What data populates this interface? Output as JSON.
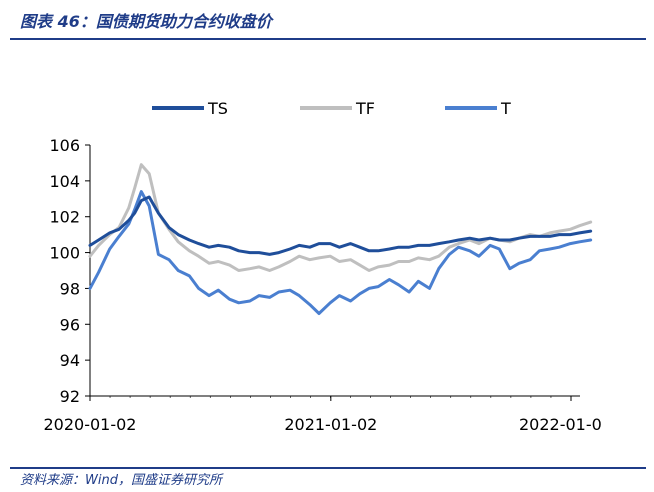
{
  "header": {
    "title": "图表 46：国债期货助力合约收盘价"
  },
  "footer": {
    "source": "资料来源：Wind，国盛证券研究所"
  },
  "chart_data": {
    "type": "line",
    "title": "",
    "xlabel": "",
    "ylabel": "",
    "ylim": [
      92,
      106
    ],
    "yticks": [
      92,
      94,
      96,
      98,
      100,
      102,
      104,
      106
    ],
    "xtick_labels": [
      "2020-01-02",
      "2021-01-02",
      "2022-01-0"
    ],
    "xlim_dates": [
      "2020-01-02",
      "2022-02-01"
    ],
    "grid": false,
    "legend_position": "top",
    "x": [
      "2020-01-02",
      "2020-01-15",
      "2020-02-01",
      "2020-02-15",
      "2020-03-01",
      "2020-03-10",
      "2020-03-20",
      "2020-04-01",
      "2020-04-15",
      "2020-05-01",
      "2020-05-15",
      "2020-06-01",
      "2020-06-15",
      "2020-07-01",
      "2020-07-15",
      "2020-08-01",
      "2020-08-15",
      "2020-09-01",
      "2020-09-15",
      "2020-10-01",
      "2020-10-15",
      "2020-11-01",
      "2020-11-15",
      "2020-12-01",
      "2020-12-15",
      "2021-01-01",
      "2021-01-15",
      "2021-02-01",
      "2021-02-15",
      "2021-03-01",
      "2021-03-15",
      "2021-04-01",
      "2021-04-15",
      "2021-05-01",
      "2021-05-15",
      "2021-06-01",
      "2021-06-15",
      "2021-07-01",
      "2021-07-15",
      "2021-08-01",
      "2021-08-15",
      "2021-09-01",
      "2021-09-15",
      "2021-10-01",
      "2021-10-15",
      "2021-11-01",
      "2021-11-15",
      "2021-12-01",
      "2021-12-15",
      "2022-01-01",
      "2022-01-15",
      "2022-02-01"
    ],
    "series": [
      {
        "name": "TS",
        "color": "#1f4e9a",
        "values": [
          100.4,
          100.7,
          101.1,
          101.3,
          101.8,
          102.2,
          102.9,
          103.1,
          102.2,
          101.4,
          101.0,
          100.7,
          100.5,
          100.3,
          100.4,
          100.3,
          100.1,
          100.0,
          100.0,
          99.9,
          100.0,
          100.2,
          100.4,
          100.3,
          100.5,
          100.5,
          100.3,
          100.5,
          100.3,
          100.1,
          100.1,
          100.2,
          100.3,
          100.3,
          100.4,
          100.4,
          100.5,
          100.6,
          100.7,
          100.8,
          100.7,
          100.8,
          100.7,
          100.7,
          100.8,
          100.9,
          100.9,
          100.9,
          101.0,
          101.0,
          101.1,
          101.2
        ]
      },
      {
        "name": "TF",
        "color": "#bfbfbf",
        "values": [
          99.8,
          100.4,
          101.0,
          101.4,
          102.5,
          103.6,
          104.9,
          104.4,
          102.2,
          101.3,
          100.6,
          100.1,
          99.8,
          99.4,
          99.5,
          99.3,
          99.0,
          99.1,
          99.2,
          99.0,
          99.2,
          99.5,
          99.8,
          99.6,
          99.7,
          99.8,
          99.5,
          99.6,
          99.3,
          99.0,
          99.2,
          99.3,
          99.5,
          99.5,
          99.7,
          99.6,
          99.8,
          100.3,
          100.5,
          100.7,
          100.5,
          100.8,
          100.7,
          100.6,
          100.8,
          101.0,
          100.9,
          101.1,
          101.2,
          101.3,
          101.5,
          101.7
        ]
      },
      {
        "name": "T",
        "color": "#4a7fd0",
        "values": [
          98.0,
          98.9,
          100.2,
          100.9,
          101.6,
          102.4,
          103.4,
          102.6,
          99.9,
          99.6,
          99.0,
          98.7,
          98.0,
          97.6,
          97.9,
          97.4,
          97.2,
          97.3,
          97.6,
          97.5,
          97.8,
          97.9,
          97.6,
          97.1,
          96.6,
          97.2,
          97.6,
          97.3,
          97.7,
          98.0,
          98.1,
          98.5,
          98.2,
          97.8,
          98.4,
          98.0,
          99.1,
          99.9,
          100.3,
          100.1,
          99.8,
          100.4,
          100.2,
          99.1,
          99.4,
          99.6,
          100.1,
          100.2,
          100.3,
          100.5,
          100.6,
          100.7
        ]
      }
    ]
  }
}
